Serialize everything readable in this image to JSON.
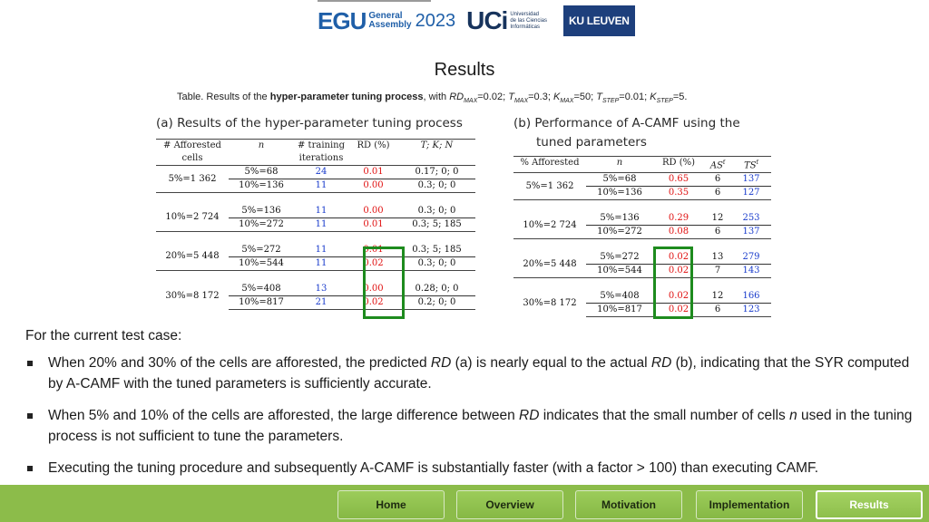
{
  "logos": {
    "egu": {
      "mark": "EGU",
      "line1": "General",
      "line2": "Assembly",
      "year": "2023"
    },
    "uci": {
      "mark": "UCi",
      "line1": "Universidad",
      "line2": "de las Ciencias",
      "line3": "Informáticas"
    },
    "kul": "KU LEUVEN"
  },
  "title": "Results",
  "caption": {
    "prefix": "Table. Results of the ",
    "bold": "hyper-parameter tuning process",
    "suffix": ", with RD",
    "params": "MAX=0.02; TMAX=0.3; KMAX=50; TSTEP=0.01; KSTEP=5."
  },
  "table_a": {
    "title": "(a) Results of the hyper-parameter tuning process",
    "headers": [
      "# Afforested cells",
      "n",
      "# training iterations",
      "RD (%)",
      "T; K; N"
    ],
    "groups": [
      {
        "label": "5%=1 362",
        "rows": [
          {
            "n": "5%=68",
            "iter": "24",
            "rd": "0.01",
            "tkn": "0.17; 0; 0"
          },
          {
            "n": "10%=136",
            "iter": "11",
            "rd": "0.00",
            "tkn": "0.3; 0; 0"
          }
        ]
      },
      {
        "label": "10%=2 724",
        "rows": [
          {
            "n": "5%=136",
            "iter": "11",
            "rd": "0.00",
            "tkn": "0.3; 0; 0"
          },
          {
            "n": "10%=272",
            "iter": "11",
            "rd": "0.01",
            "tkn": "0.3; 5; 185"
          }
        ]
      },
      {
        "label": "20%=5 448",
        "rows": [
          {
            "n": "5%=272",
            "iter": "11",
            "rd": "0.01",
            "tkn": "0.3; 5; 185"
          },
          {
            "n": "10%=544",
            "iter": "11",
            "rd": "0.02",
            "tkn": "0.3; 0; 0"
          }
        ]
      },
      {
        "label": "30%=8 172",
        "rows": [
          {
            "n": "5%=408",
            "iter": "13",
            "rd": "0.00",
            "tkn": "0.28; 0; 0"
          },
          {
            "n": "10%=817",
            "iter": "21",
            "rd": "0.02",
            "tkn": "0.2; 0; 0"
          }
        ]
      }
    ]
  },
  "table_b": {
    "title_line1": "(b) Performance of A-CAMF using the",
    "title_line2": "tuned parameters",
    "headers": [
      "% Afforested",
      "n",
      "RD (%)",
      "AS",
      "TS"
    ],
    "groups": [
      {
        "label": "5%=1 362",
        "rows": [
          {
            "n": "5%=68",
            "rd": "0.65",
            "as": "6",
            "ts": "137"
          },
          {
            "n": "10%=136",
            "rd": "0.35",
            "as": "6",
            "ts": "127"
          }
        ]
      },
      {
        "label": "10%=2 724",
        "rows": [
          {
            "n": "5%=136",
            "rd": "0.29",
            "as": "12",
            "ts": "253"
          },
          {
            "n": "10%=272",
            "rd": "0.08",
            "as": "6",
            "ts": "137"
          }
        ]
      },
      {
        "label": "20%=5 448",
        "rows": [
          {
            "n": "5%=272",
            "rd": "0.02",
            "as": "13",
            "ts": "279"
          },
          {
            "n": "10%=544",
            "rd": "0.02",
            "as": "7",
            "ts": "143"
          }
        ]
      },
      {
        "label": "30%=8 172",
        "rows": [
          {
            "n": "5%=408",
            "rd": "0.02",
            "as": "12",
            "ts": "166"
          },
          {
            "n": "10%=817",
            "rd": "0.02",
            "as": "6",
            "ts": "123"
          }
        ]
      }
    ]
  },
  "lead": "For the current test case:",
  "bullets": [
    "When 20% and 30% of the cells are afforested, the predicted RD (a) is nearly equal to the actual RD (b), indicating that the SYR computed by A-CAMF with the tuned parameters is sufficiently accurate.",
    "When 5% and 10% of the cells are afforested, the large difference between RD indicates that the small number of cells n used in the tuning process is not sufficient to tune the parameters.",
    "Executing the tuning procedure and subsequently A-CAMF is substantially faster (with a factor > 100) than executing CAMF."
  ],
  "nav": [
    {
      "label": "Home"
    },
    {
      "label": "Overview"
    },
    {
      "label": "Motivation"
    },
    {
      "label": "Implementation"
    },
    {
      "label": "Results",
      "active": true
    }
  ],
  "colors": {
    "accent_green": "#1e8b1e",
    "footer": "#8cbc4a",
    "red": "#e01010",
    "blue": "#1a3ccc"
  }
}
